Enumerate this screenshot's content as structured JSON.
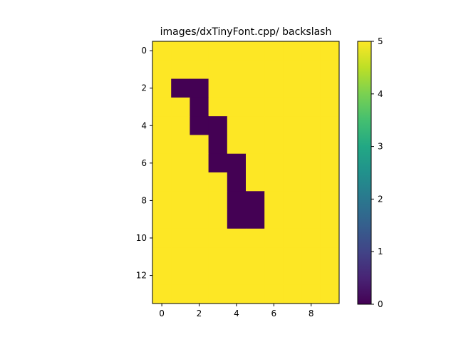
{
  "chart_data": {
    "type": "heatmap",
    "title": "images/dxTinyFont.cpp/ backslash",
    "xlabel": "",
    "ylabel": "",
    "ncols": 10,
    "nrows": 14,
    "x_ticks": [
      0,
      2,
      4,
      6,
      8
    ],
    "y_ticks": [
      0,
      2,
      4,
      6,
      8,
      10,
      12
    ],
    "values": [
      [
        5,
        5,
        5,
        5,
        5,
        5,
        5,
        5,
        5,
        5
      ],
      [
        5,
        5,
        5,
        5,
        5,
        5,
        5,
        5,
        5,
        5
      ],
      [
        5,
        0,
        0,
        5,
        5,
        5,
        5,
        5,
        5,
        5
      ],
      [
        5,
        5,
        0,
        5,
        5,
        5,
        5,
        5,
        5,
        5
      ],
      [
        5,
        5,
        0,
        0,
        5,
        5,
        5,
        5,
        5,
        5
      ],
      [
        5,
        5,
        5,
        0,
        5,
        5,
        5,
        5,
        5,
        5
      ],
      [
        5,
        5,
        5,
        0,
        0,
        5,
        5,
        5,
        5,
        5
      ],
      [
        5,
        5,
        5,
        5,
        0,
        5,
        5,
        5,
        5,
        5
      ],
      [
        5,
        5,
        5,
        5,
        0,
        0,
        5,
        5,
        5,
        5
      ],
      [
        5,
        5,
        5,
        5,
        0,
        0,
        5,
        5,
        5,
        5
      ],
      [
        5,
        5,
        5,
        5,
        5,
        5,
        5,
        5,
        5,
        5
      ],
      [
        5,
        5,
        5,
        5,
        5,
        5,
        5,
        5,
        5,
        5
      ],
      [
        5,
        5,
        5,
        5,
        5,
        5,
        5,
        5,
        5,
        5
      ],
      [
        5,
        5,
        5,
        5,
        5,
        5,
        5,
        5,
        5,
        5
      ]
    ],
    "colorbar": {
      "min": 0,
      "max": 5,
      "ticks": [
        0,
        1,
        2,
        3,
        4,
        5
      ],
      "colormap": "viridis"
    },
    "colors": {
      "low": "#440154",
      "high": "#fde725"
    }
  }
}
